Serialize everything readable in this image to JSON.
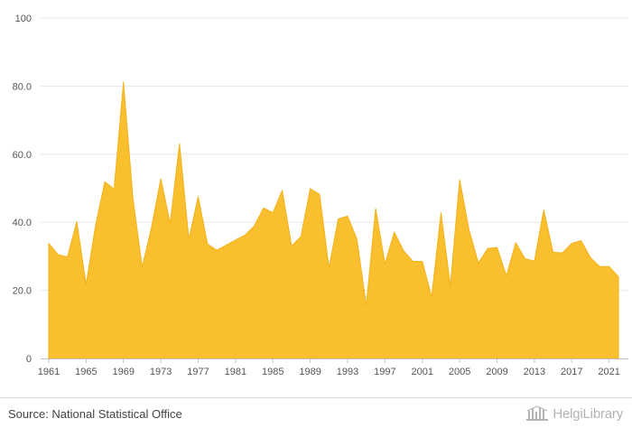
{
  "chart_data": {
    "type": "area",
    "title": "",
    "xlabel": "",
    "ylabel": "",
    "x": [
      1961,
      1962,
      1963,
      1964,
      1965,
      1966,
      1967,
      1968,
      1969,
      1970,
      1971,
      1972,
      1973,
      1974,
      1975,
      1976,
      1977,
      1978,
      1979,
      1980,
      1981,
      1982,
      1983,
      1984,
      1985,
      1986,
      1987,
      1988,
      1989,
      1990,
      1991,
      1992,
      1993,
      1994,
      1995,
      1996,
      1997,
      1998,
      1999,
      2000,
      2001,
      2002,
      2003,
      2004,
      2005,
      2006,
      2007,
      2008,
      2009,
      2010,
      2011,
      2012,
      2013,
      2014,
      2015,
      2016,
      2017,
      2018,
      2019,
      2020,
      2021,
      2022
    ],
    "values": [
      33.8,
      30.5,
      29.8,
      40.2,
      21.7,
      38.9,
      51.9,
      49.8,
      81.2,
      47.3,
      26.8,
      38.5,
      52.8,
      39.7,
      63.1,
      35.0,
      47.5,
      33.6,
      31.8,
      33.3,
      34.8,
      36.2,
      38.9,
      44.2,
      42.8,
      49.4,
      33.0,
      35.8,
      49.9,
      48.2,
      26.6,
      41.0,
      41.8,
      35.0,
      15.6,
      44.0,
      27.8,
      37.1,
      31.6,
      28.5,
      28.5,
      18.1,
      42.8,
      21.3,
      52.5,
      37.8,
      28.0,
      32.3,
      32.6,
      24.3,
      34.0,
      29.3,
      28.6,
      43.6,
      31.2,
      31.0,
      33.8,
      34.6,
      29.6,
      27.0,
      27.0,
      24.0
    ],
    "ylim": [
      0,
      100
    ],
    "yticks": [
      "0",
      "20.0",
      "40.0",
      "60.0",
      "80.0",
      "100"
    ],
    "ytick_values": [
      0,
      20,
      40,
      60,
      80,
      100
    ],
    "xticks": [
      "1961",
      "1965",
      "1969",
      "1973",
      "1977",
      "1981",
      "1985",
      "1989",
      "1993",
      "1997",
      "2001",
      "2005",
      "2009",
      "2013",
      "2017",
      "2021"
    ],
    "xtick_values": [
      1961,
      1965,
      1969,
      1973,
      1977,
      1981,
      1985,
      1989,
      1993,
      1997,
      2001,
      2005,
      2009,
      2013,
      2017,
      2021
    ],
    "grid": true,
    "legend": "none",
    "colors": {
      "fill": "#F9BF2F",
      "stroke": "#F2B21B",
      "grid": "#e6e6e6",
      "axis": "#c0c0c0"
    }
  },
  "footer": {
    "source": "Source: National Statistical Office",
    "brand": "HelgiLibrary"
  }
}
